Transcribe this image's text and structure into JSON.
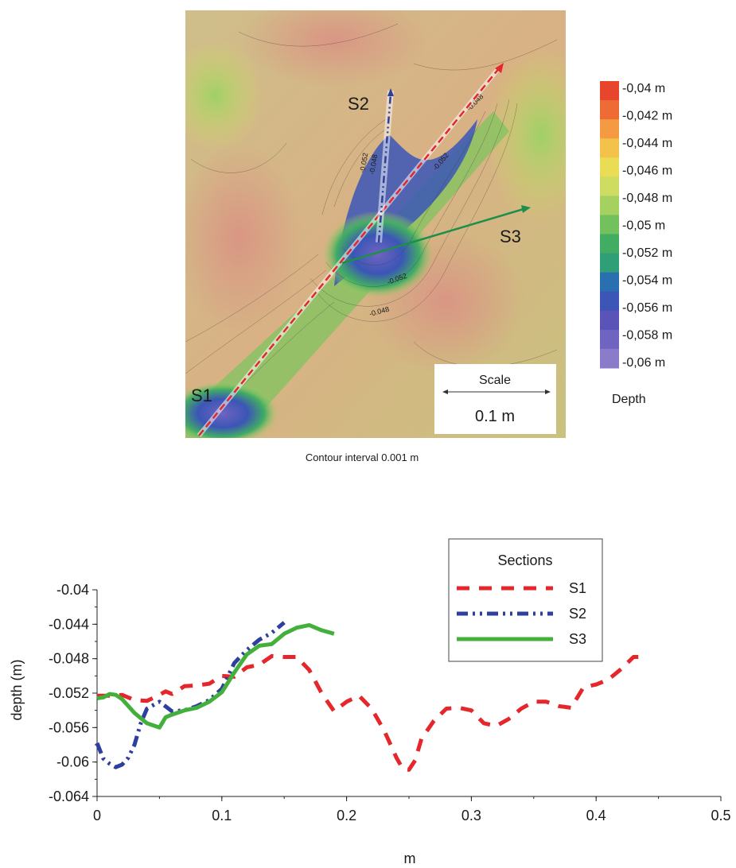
{
  "map": {
    "section_labels": [
      "S1",
      "S2",
      "S3"
    ],
    "scale_title": "Scale",
    "scale_value": "0.1 m",
    "caption": "Contour interval 0.001 m",
    "contour_labels": [
      "-0.052",
      "-0.048",
      "-0.052",
      "-0.048",
      "-0.052",
      "-0.048"
    ]
  },
  "colorbar": {
    "title": "Depth",
    "ticks": [
      "-0,04  m",
      "-0,042  m",
      "-0,044  m",
      "-0,046  m",
      "-0,048  m",
      "-0,05  m",
      "-0,052  m",
      "-0,054  m",
      "-0,056  m",
      "-0,058  m",
      "-0,06  m"
    ],
    "colors": [
      "#e8452d",
      "#ee6b35",
      "#f39a42",
      "#f3c24a",
      "#e8dd55",
      "#cfdc62",
      "#a5d160",
      "#72c05e",
      "#41ad63",
      "#2f9f78",
      "#2a6fb0",
      "#3b56b6",
      "#5a54b8",
      "#6f64bf",
      "#8a7cc8"
    ]
  },
  "chart_data": {
    "type": "line",
    "xlabel": "m",
    "ylabel": "depth (m)",
    "xlim": [
      0,
      0.5
    ],
    "ylim": [
      -0.064,
      -0.04
    ],
    "xticks": [
      "0",
      "0.1",
      "0.2",
      "0.3",
      "0.4",
      "0.5"
    ],
    "yticks": [
      "-0.04",
      "-0.044",
      "-0.048",
      "-0.052",
      "-0.056",
      "-0.06",
      "-0.064"
    ],
    "legend_title": "Sections",
    "legend_position": "top-right",
    "series": [
      {
        "name": "S1",
        "color": "#e5262a",
        "style": "dashed",
        "x": [
          0,
          0.01,
          0.02,
          0.03,
          0.04,
          0.05,
          0.055,
          0.06,
          0.07,
          0.08,
          0.09,
          0.1,
          0.11,
          0.12,
          0.13,
          0.14,
          0.15,
          0.16,
          0.17,
          0.18,
          0.19,
          0.2,
          0.21,
          0.22,
          0.23,
          0.24,
          0.245,
          0.25,
          0.255,
          0.26,
          0.27,
          0.28,
          0.29,
          0.3,
          0.31,
          0.32,
          0.33,
          0.34,
          0.35,
          0.36,
          0.37,
          0.38,
          0.39,
          0.4,
          0.41,
          0.42,
          0.43,
          0.44
        ],
        "values": [
          -0.0523,
          -0.0523,
          -0.0522,
          -0.0528,
          -0.0529,
          -0.0522,
          -0.0518,
          -0.0521,
          -0.0512,
          -0.0511,
          -0.0509,
          -0.05,
          -0.0501,
          -0.049,
          -0.0487,
          -0.0477,
          -0.0478,
          -0.0478,
          -0.0493,
          -0.052,
          -0.0541,
          -0.053,
          -0.0523,
          -0.0538,
          -0.0563,
          -0.0595,
          -0.0608,
          -0.0609,
          -0.0598,
          -0.0573,
          -0.0552,
          -0.0538,
          -0.0537,
          -0.054,
          -0.0555,
          -0.0558,
          -0.055,
          -0.0538,
          -0.053,
          -0.053,
          -0.0535,
          -0.0537,
          -0.0513,
          -0.051,
          -0.0504,
          -0.0492,
          -0.0478,
          -0.0478
        ]
      },
      {
        "name": "S2",
        "color": "#2e3f9e",
        "style": "dash-dot-dot",
        "x": [
          0,
          0.005,
          0.01,
          0.015,
          0.02,
          0.025,
          0.03,
          0.035,
          0.04,
          0.05,
          0.06,
          0.07,
          0.08,
          0.09,
          0.1,
          0.11,
          0.12,
          0.13,
          0.14,
          0.15
        ],
        "values": [
          -0.0578,
          -0.0596,
          -0.0602,
          -0.0606,
          -0.0603,
          -0.0595,
          -0.058,
          -0.0555,
          -0.0538,
          -0.053,
          -0.0541,
          -0.054,
          -0.0535,
          -0.0528,
          -0.0515,
          -0.0485,
          -0.047,
          -0.0458,
          -0.045,
          -0.0438
        ]
      },
      {
        "name": "S3",
        "color": "#43b03c",
        "style": "solid",
        "x": [
          0,
          0.005,
          0.01,
          0.015,
          0.02,
          0.03,
          0.04,
          0.05,
          0.055,
          0.06,
          0.07,
          0.08,
          0.09,
          0.1,
          0.11,
          0.12,
          0.13,
          0.14,
          0.15,
          0.16,
          0.17,
          0.18,
          0.19
        ],
        "values": [
          -0.0526,
          -0.0525,
          -0.0521,
          -0.0522,
          -0.0527,
          -0.0543,
          -0.0555,
          -0.056,
          -0.0548,
          -0.0545,
          -0.054,
          -0.0537,
          -0.053,
          -0.0519,
          -0.0496,
          -0.0475,
          -0.0465,
          -0.0463,
          -0.0451,
          -0.0444,
          -0.0441,
          -0.0447,
          -0.0451
        ]
      }
    ]
  }
}
